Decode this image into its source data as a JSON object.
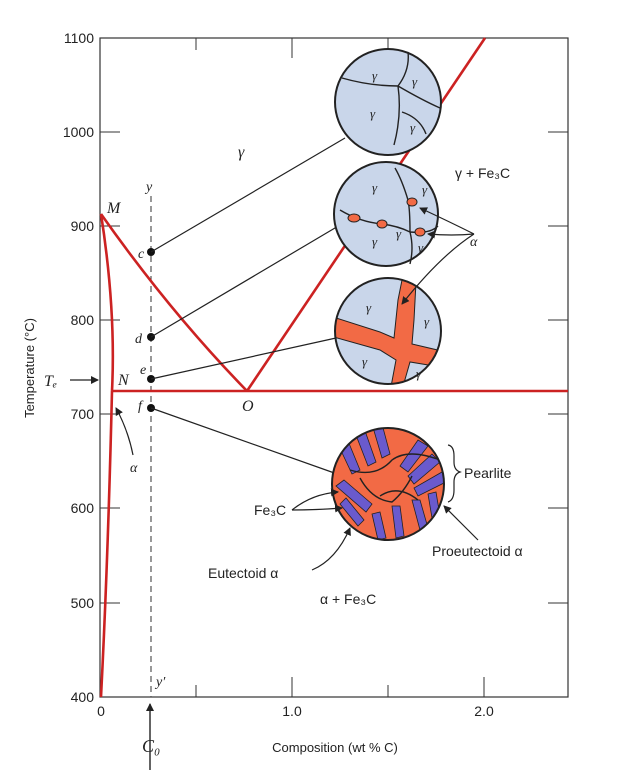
{
  "axes": {
    "xlabel": "Composition (wt % C)",
    "ylabel": "Temperature (°C)",
    "x_ticks": [
      "0",
      "1.0",
      "2.0"
    ],
    "y_ticks": [
      "400",
      "500",
      "600",
      "700",
      "800",
      "900",
      "1000",
      "1100"
    ]
  },
  "phase_labels": {
    "gamma": "γ",
    "gamma_fe3c": "γ + Fe₃C",
    "alpha_fe3c": "α + Fe₃C",
    "alpha": "α",
    "alpha_right": "α"
  },
  "point_labels": {
    "M": "M",
    "N": "N",
    "O": "O",
    "Te": "Tₑ",
    "c": "c",
    "d": "d",
    "e": "e",
    "f": "f",
    "y_top": "y",
    "y_bottom": "y′",
    "C0": "C₀"
  },
  "annotations": {
    "pearlite": "Pearlite",
    "fe3c": "Fe₃C",
    "eutectoid_alpha": "Eutectoid α",
    "proeutectoid_alpha": "Proeutectoid α"
  },
  "grain_labels": {
    "circle1": [
      "γ",
      "γ",
      "γ",
      "γ"
    ],
    "circle2": [
      "γ",
      "γ",
      "γ",
      "γ",
      "γ"
    ],
    "circle3": [
      "γ",
      "γ",
      "γ",
      "γ"
    ]
  },
  "colors": {
    "phase_line": "#cc2222",
    "gamma_grain": "#c9d6ea",
    "alpha_phase": "#f26a45",
    "fe3c_lamella": "#6a5acd",
    "text": "#222222"
  }
}
